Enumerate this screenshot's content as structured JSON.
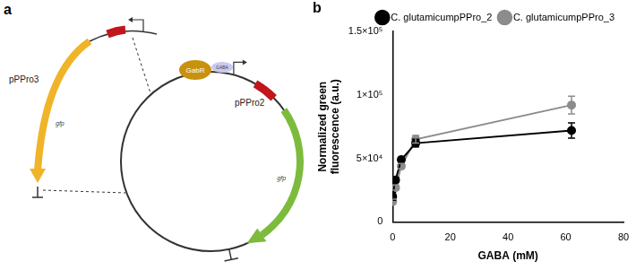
{
  "diagram": {
    "panel_label": "a",
    "plasmids": [
      "pPPro3",
      "pPPro2"
    ],
    "regulator": "GabR",
    "ligand": "GABA",
    "genes": [
      "gfp",
      "gfp"
    ]
  },
  "chart_data": {
    "type": "line",
    "annotations": [
      "b"
    ],
    "x_label": "GABA (mM)",
    "y_label": [
      "Normalized green",
      "fluorescence (a.u.)"
    ],
    "x": [
      0,
      1,
      3,
      8,
      62
    ],
    "series": [
      {
        "name": "C. glutamicumpPPro_2",
        "color": "#000000",
        "marker": "circle",
        "values": [
          20000,
          33000,
          49000,
          62000,
          72000
        ],
        "errors": [
          3000,
          2000,
          2000,
          3000,
          6000
        ]
      },
      {
        "name": "C. glutamicumpPPro_3",
        "color": "#8c8c8c",
        "marker": "circle",
        "values": [
          16000,
          27000,
          44000,
          65000,
          92000
        ],
        "errors": [
          2000,
          2000,
          2000,
          3000,
          7000
        ]
      }
    ],
    "xlim": [
      0,
      80
    ],
    "xticks": [
      0,
      20,
      40,
      60,
      80
    ],
    "ylim": [
      0,
      150000
    ],
    "yticks": [
      0,
      {
        "value": 50000,
        "label": "5×10⁴"
      },
      {
        "value": 100000,
        "label": "1×10⁵"
      },
      {
        "value": 150000,
        "label": "1.5×10⁵"
      }
    ],
    "grid": false,
    "legend": "top"
  }
}
